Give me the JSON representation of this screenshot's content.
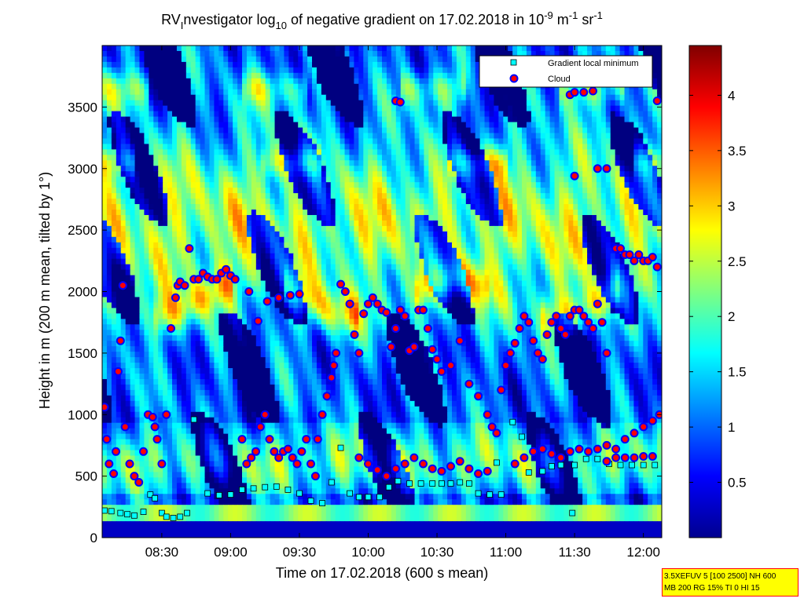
{
  "chart_data": {
    "type": "heatmap",
    "title": {
      "pre": "RV",
      "sub1": "I",
      "mid1": "nvestigator log",
      "sub2": "10",
      "mid2": " of negative gradient on 17.02.2018 in 10",
      "sup1": "-9",
      "mid3": " m",
      "sup2": "-1",
      "mid4": " sr",
      "sup3": "-1"
    },
    "xlabel": "Time on 17.02.2018 (600 s mean)",
    "ylabel": "Height in m (200 m mean, tilted by 1°)",
    "x_ticks": [
      "08:30",
      "09:00",
      "09:30",
      "10:00",
      "10:30",
      "11:00",
      "11:30",
      "12:00"
    ],
    "x_tick_minutes": [
      510,
      540,
      570,
      600,
      630,
      660,
      690,
      720
    ],
    "xlim_minutes": [
      484,
      728
    ],
    "y_ticks": [
      "0",
      "500",
      "1000",
      "1500",
      "2000",
      "2500",
      "3000",
      "3500"
    ],
    "y_tick_values": [
      0,
      500,
      1000,
      1500,
      2000,
      2500,
      3000,
      3500
    ],
    "ylim": [
      0,
      4000
    ],
    "colorbar": {
      "ticks": [
        "0.5",
        "1",
        "1.5",
        "2",
        "2.5",
        "3",
        "3.5",
        "4"
      ],
      "tick_values": [
        0.5,
        1,
        1.5,
        2,
        2.5,
        3,
        3.5,
        4
      ],
      "range": [
        0,
        4.45
      ],
      "colormap": "jet"
    },
    "legend": {
      "position": "top-right",
      "entries": [
        {
          "label": "Gradient local minimum",
          "marker": "square",
          "color": "#00ffff"
        },
        {
          "label": "Cloud",
          "marker": "circle",
          "color": "#ff0000"
        }
      ]
    },
    "grid": false,
    "series": [
      {
        "name": "Gradient local minimum",
        "points": [
          [
            485,
            220
          ],
          [
            488,
            215
          ],
          [
            492,
            200
          ],
          [
            495,
            190
          ],
          [
            498,
            180
          ],
          [
            502,
            210
          ],
          [
            505,
            350
          ],
          [
            507,
            320
          ],
          [
            510,
            200
          ],
          [
            512,
            170
          ],
          [
            515,
            160
          ],
          [
            518,
            170
          ],
          [
            521,
            200
          ],
          [
            524,
            960
          ],
          [
            530,
            360
          ],
          [
            535,
            345
          ],
          [
            540,
            350
          ],
          [
            545,
            390
          ],
          [
            550,
            400
          ],
          [
            555,
            410
          ],
          [
            560,
            415
          ],
          [
            565,
            390
          ],
          [
            570,
            360
          ],
          [
            575,
            300
          ],
          [
            580,
            280
          ],
          [
            584,
            450
          ],
          [
            588,
            730
          ],
          [
            592,
            360
          ],
          [
            596,
            330
          ],
          [
            600,
            330
          ],
          [
            605,
            330
          ],
          [
            609,
            410
          ],
          [
            613,
            460
          ],
          [
            618,
            440
          ],
          [
            623,
            440
          ],
          [
            628,
            440
          ],
          [
            632,
            440
          ],
          [
            636,
            440
          ],
          [
            640,
            450
          ],
          [
            644,
            440
          ],
          [
            648,
            360
          ],
          [
            653,
            350
          ],
          [
            656,
            610
          ],
          [
            658,
            350
          ],
          [
            663,
            940
          ],
          [
            667,
            820
          ],
          [
            670,
            530
          ],
          [
            676,
            540
          ],
          [
            680,
            580
          ],
          [
            684,
            590
          ],
          [
            689,
            200
          ],
          [
            690,
            590
          ],
          [
            695,
            640
          ],
          [
            700,
            640
          ],
          [
            705,
            600
          ],
          [
            710,
            590
          ],
          [
            715,
            590
          ],
          [
            720,
            590
          ],
          [
            725,
            590
          ]
        ]
      },
      {
        "name": "Cloud",
        "points": [
          [
            485,
            1060
          ],
          [
            486,
            800
          ],
          [
            487,
            600
          ],
          [
            489,
            520
          ],
          [
            490,
            700
          ],
          [
            491,
            1350
          ],
          [
            492,
            1600
          ],
          [
            493,
            2050
          ],
          [
            494,
            900
          ],
          [
            496,
            600
          ],
          [
            498,
            500
          ],
          [
            500,
            450
          ],
          [
            502,
            700
          ],
          [
            504,
            1000
          ],
          [
            506,
            980
          ],
          [
            507,
            900
          ],
          [
            508,
            800
          ],
          [
            510,
            600
          ],
          [
            512,
            1000
          ],
          [
            514,
            1700
          ],
          [
            516,
            1950
          ],
          [
            517,
            2050
          ],
          [
            518,
            2080
          ],
          [
            520,
            2050
          ],
          [
            522,
            2350
          ],
          [
            524,
            2100
          ],
          [
            526,
            2100
          ],
          [
            528,
            2150
          ],
          [
            530,
            2120
          ],
          [
            532,
            2100
          ],
          [
            534,
            2100
          ],
          [
            536,
            2150
          ],
          [
            538,
            2180
          ],
          [
            540,
            2130
          ],
          [
            542,
            2100
          ],
          [
            545,
            800
          ],
          [
            547,
            600
          ],
          [
            549,
            650
          ],
          [
            551,
            700
          ],
          [
            553,
            900
          ],
          [
            555,
            1000
          ],
          [
            557,
            800
          ],
          [
            559,
            700
          ],
          [
            561,
            650
          ],
          [
            563,
            700
          ],
          [
            565,
            720
          ],
          [
            567,
            650
          ],
          [
            569,
            600
          ],
          [
            571,
            700
          ],
          [
            573,
            800
          ],
          [
            575,
            600
          ],
          [
            577,
            500
          ],
          [
            570,
            1980
          ],
          [
            566,
            1970
          ],
          [
            561,
            1950
          ],
          [
            556,
            1920
          ],
          [
            552,
            1760
          ],
          [
            548,
            2000
          ],
          [
            578,
            800
          ],
          [
            580,
            1000
          ],
          [
            582,
            1150
          ],
          [
            584,
            1300
          ],
          [
            585,
            1400
          ],
          [
            586,
            1500
          ],
          [
            588,
            2060
          ],
          [
            590,
            2000
          ],
          [
            592,
            1900
          ],
          [
            594,
            1650
          ],
          [
            596,
            1500
          ],
          [
            598,
            1820
          ],
          [
            600,
            1900
          ],
          [
            602,
            1950
          ],
          [
            604,
            1900
          ],
          [
            606,
            1850
          ],
          [
            608,
            1830
          ],
          [
            610,
            1550
          ],
          [
            612,
            1700
          ],
          [
            614,
            1850
          ],
          [
            616,
            1800
          ],
          [
            618,
            1520
          ],
          [
            620,
            1550
          ],
          [
            622,
            1850
          ],
          [
            624,
            1850
          ],
          [
            626,
            1700
          ],
          [
            628,
            1530
          ],
          [
            630,
            1450
          ],
          [
            632,
            1350
          ],
          [
            636,
            1400
          ],
          [
            640,
            1600
          ],
          [
            644,
            1250
          ],
          [
            648,
            1150
          ],
          [
            652,
            1000
          ],
          [
            654,
            900
          ],
          [
            656,
            850
          ],
          [
            658,
            1200
          ],
          [
            660,
            1400
          ],
          [
            662,
            1500
          ],
          [
            664,
            1580
          ],
          [
            666,
            1700
          ],
          [
            668,
            1800
          ],
          [
            670,
            1750
          ],
          [
            672,
            1600
          ],
          [
            674,
            1500
          ],
          [
            676,
            1450
          ],
          [
            678,
            1650
          ],
          [
            680,
            1750
          ],
          [
            682,
            1800
          ],
          [
            684,
            1700
          ],
          [
            686,
            1650
          ],
          [
            688,
            1800
          ],
          [
            690,
            1850
          ],
          [
            692,
            1850
          ],
          [
            694,
            1800
          ],
          [
            696,
            1750
          ],
          [
            698,
            1700
          ],
          [
            700,
            1900
          ],
          [
            702,
            1750
          ],
          [
            704,
            1500
          ],
          [
            708,
            2350
          ],
          [
            710,
            2350
          ],
          [
            712,
            2300
          ],
          [
            714,
            2300
          ],
          [
            716,
            2250
          ],
          [
            718,
            2300
          ],
          [
            720,
            2250
          ],
          [
            722,
            2250
          ],
          [
            724,
            2280
          ],
          [
            726,
            2200
          ],
          [
            612,
            3550
          ],
          [
            614,
            3540
          ],
          [
            688,
            3600
          ],
          [
            690,
            3620
          ],
          [
            694,
            3620
          ],
          [
            698,
            3630
          ],
          [
            726,
            3550
          ],
          [
            700,
            3000
          ],
          [
            704,
            3000
          ],
          [
            690,
            2940
          ],
          [
            596,
            650
          ],
          [
            600,
            600
          ],
          [
            604,
            550
          ],
          [
            608,
            500
          ],
          [
            612,
            560
          ],
          [
            616,
            600
          ],
          [
            620,
            650
          ],
          [
            624,
            600
          ],
          [
            628,
            560
          ],
          [
            632,
            540
          ],
          [
            636,
            580
          ],
          [
            640,
            620
          ],
          [
            644,
            560
          ],
          [
            648,
            520
          ],
          [
            652,
            540
          ],
          [
            664,
            600
          ],
          [
            668,
            650
          ],
          [
            672,
            700
          ],
          [
            676,
            720
          ],
          [
            680,
            680
          ],
          [
            684,
            650
          ],
          [
            688,
            700
          ],
          [
            692,
            720
          ],
          [
            696,
            700
          ],
          [
            700,
            720
          ],
          [
            704,
            750
          ],
          [
            708,
            720
          ],
          [
            712,
            800
          ],
          [
            716,
            850
          ],
          [
            720,
            900
          ],
          [
            724,
            950
          ],
          [
            727,
            1000
          ],
          [
            704,
            620
          ],
          [
            708,
            650
          ],
          [
            712,
            650
          ],
          [
            716,
            650
          ],
          [
            720,
            660
          ],
          [
            724,
            660
          ]
        ]
      }
    ]
  },
  "annotation_box": {
    "line1": "3.5XEFUV 5 [100 2500] NH 600",
    "line2": "MB 200 RG 15% TI 0 HI 15"
  }
}
